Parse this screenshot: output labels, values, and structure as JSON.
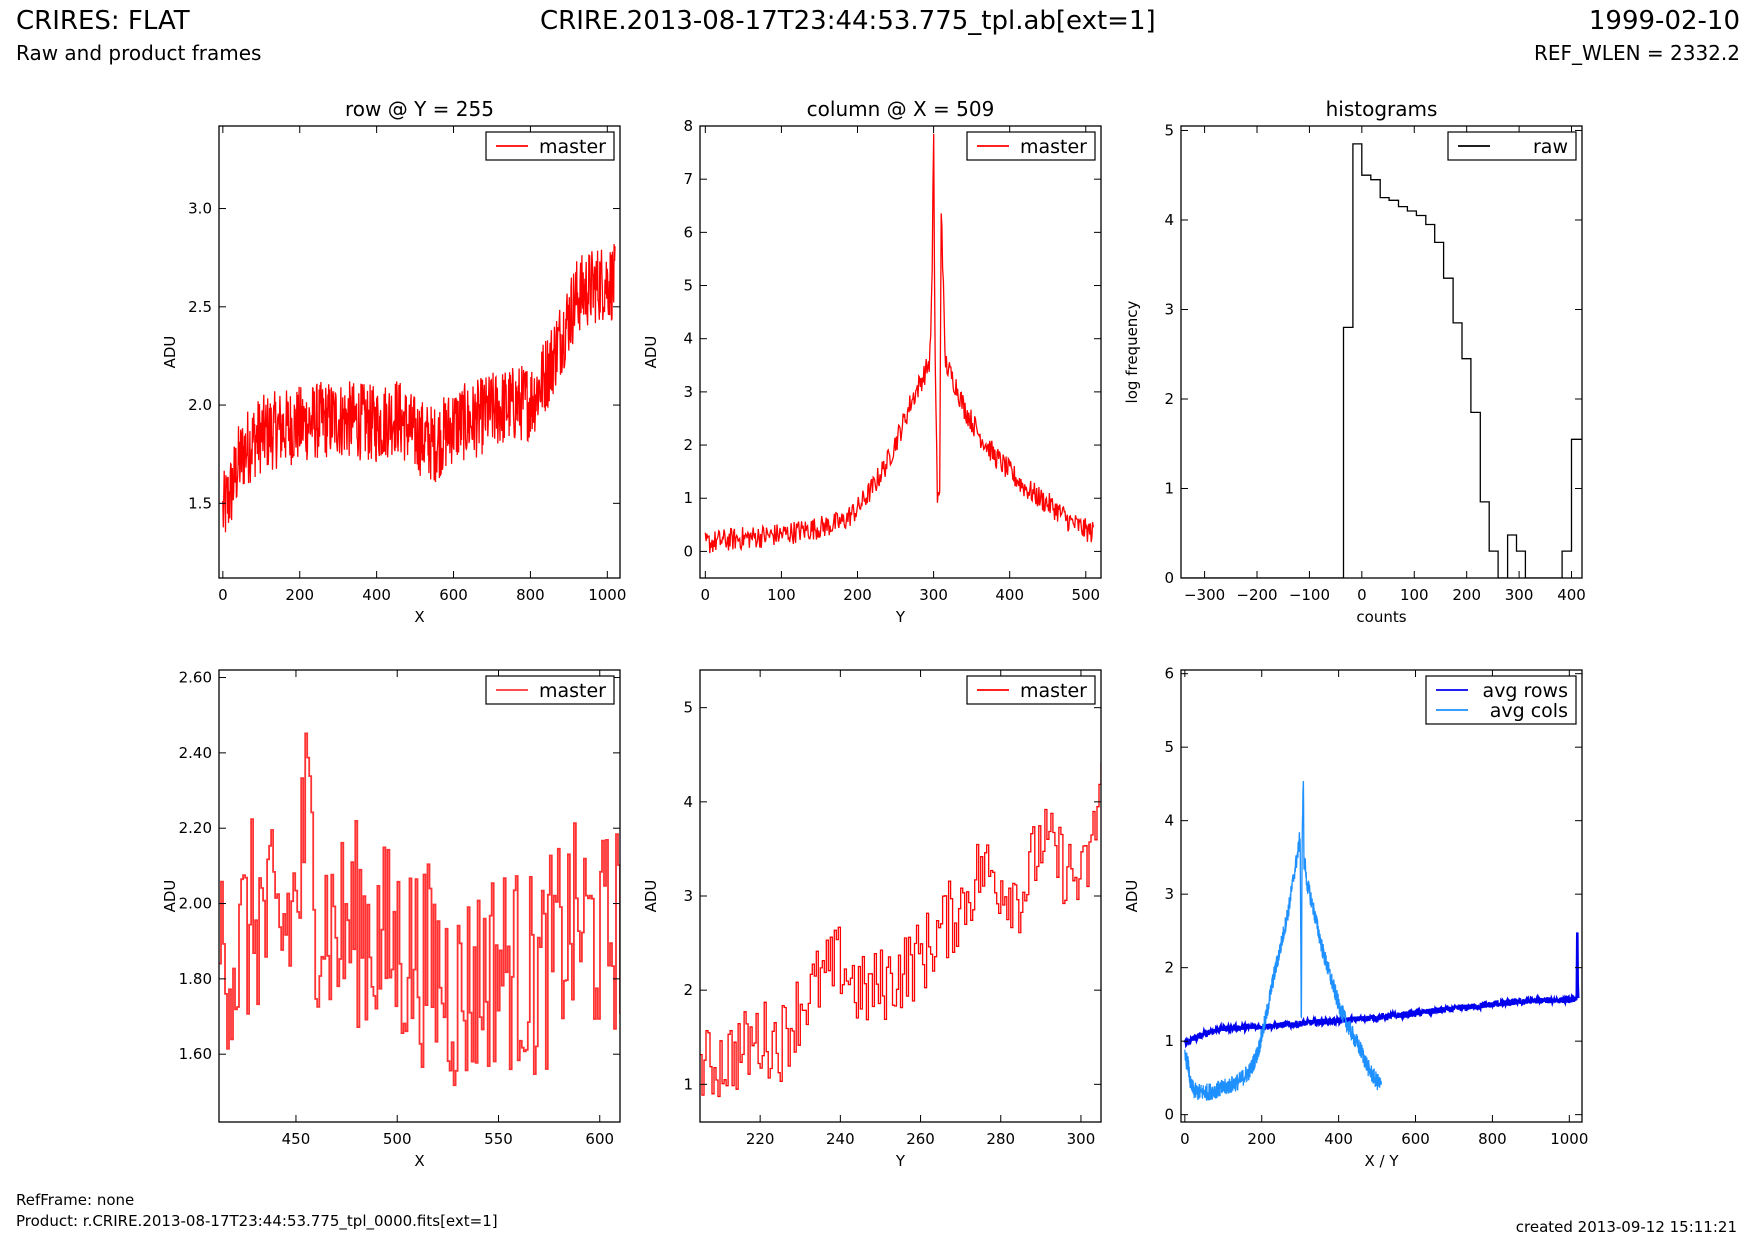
{
  "header": {
    "title": "CRIRES: FLAT",
    "subtitle": "Raw and product frames",
    "filename": "CRIRE.2013-08-17T23:44:53.775_tpl.ab[ext=1]",
    "date": "1999-02-10",
    "ref_wlen": "REF_WLEN = 2332.2"
  },
  "footer": {
    "refframe": "RefFrame: none",
    "product": "Product: r.CRIRE.2013-08-17T23:44:53.775_tpl_0000.fits[ext=1]",
    "created": "created 2013-09-12 15:11:21"
  },
  "colors": {
    "red": "#ff0000",
    "lightred": "#ff3333",
    "black": "#000000",
    "blue": "#0000ee",
    "lightblue": "#1e90ff"
  },
  "chart_data": [
    {
      "type": "line",
      "title": "row @ Y = 255",
      "xlabel": "X",
      "ylabel": "ADU",
      "xlim": [
        -10,
        1033
      ],
      "ylim": [
        1.12,
        3.42
      ],
      "xticks": [
        0,
        200,
        400,
        600,
        800,
        1000
      ],
      "yticks": [
        1.5,
        2.0,
        2.5,
        3.0
      ],
      "legend": "top-right",
      "series": [
        {
          "name": "master",
          "color": "#ff0000",
          "x": [
            0,
            10,
            20,
            40,
            60,
            80,
            100,
            150,
            200,
            250,
            300,
            350,
            400,
            450,
            500,
            550,
            600,
            650,
            700,
            750,
            800,
            820,
            850,
            880,
            900,
            920,
            940,
            960,
            980,
            1000,
            1020
          ],
          "y": [
            1.45,
            1.5,
            1.55,
            1.7,
            1.78,
            1.82,
            1.85,
            1.88,
            1.9,
            1.92,
            1.93,
            1.92,
            1.9,
            1.95,
            1.85,
            1.8,
            1.9,
            1.92,
            1.97,
            2.0,
            2.02,
            2.08,
            2.2,
            2.35,
            2.45,
            2.55,
            2.58,
            2.6,
            2.62,
            2.63,
            2.62
          ],
          "noise": 0.2
        }
      ]
    },
    {
      "type": "line",
      "title": "column @ X = 509",
      "xlabel": "Y",
      "ylabel": "ADU",
      "xlim": [
        -7,
        520
      ],
      "ylim": [
        -0.5,
        8
      ],
      "xticks": [
        0,
        100,
        200,
        300,
        400,
        500
      ],
      "yticks": [
        0,
        1,
        2,
        3,
        4,
        5,
        6,
        7,
        8
      ],
      "legend": "top-right",
      "series": [
        {
          "name": "master",
          "color": "#ff0000",
          "x": [
            0,
            20,
            50,
            100,
            150,
            180,
            200,
            220,
            240,
            260,
            270,
            280,
            290,
            295,
            298,
            300,
            302,
            305,
            308,
            310,
            315,
            320,
            330,
            340,
            360,
            380,
            400,
            420,
            440,
            460,
            480,
            500,
            510
          ],
          "y": [
            0.15,
            0.2,
            0.25,
            0.32,
            0.45,
            0.55,
            0.8,
            1.2,
            1.7,
            2.4,
            2.8,
            3.1,
            3.4,
            3.6,
            5.0,
            7.9,
            3.7,
            1.0,
            1.0,
            6.7,
            3.6,
            3.4,
            3.1,
            2.7,
            2.2,
            1.8,
            1.5,
            1.2,
            1.0,
            0.8,
            0.55,
            0.4,
            0.35
          ],
          "noise": 0.22
        }
      ]
    },
    {
      "type": "line",
      "title": "histograms",
      "xlabel": "counts",
      "ylabel": "log frequency",
      "xlim": [
        -345,
        420
      ],
      "ylim": [
        0,
        5.05
      ],
      "xticks": [
        -300,
        -200,
        -100,
        0,
        100,
        200,
        300,
        400
      ],
      "yticks": [
        0,
        1,
        2,
        3,
        4,
        5
      ],
      "legend": "top-right",
      "series": [
        {
          "name": "raw",
          "color": "#000000",
          "step": true,
          "x": [
            -345,
            -35,
            -35,
            -17,
            -17,
            0,
            0,
            17,
            17,
            35,
            35,
            52,
            52,
            70,
            70,
            87,
            87,
            104,
            104,
            122,
            122,
            139,
            139,
            156,
            156,
            174,
            174,
            191,
            191,
            208,
            208,
            226,
            226,
            243,
            243,
            260,
            260,
            278,
            278,
            295,
            295,
            312,
            312,
            330,
            330,
            382,
            382,
            400,
            400,
            420
          ],
          "y": [
            0,
            0,
            2.8,
            2.8,
            4.85,
            4.85,
            4.5,
            4.5,
            4.45,
            4.45,
            4.25,
            4.25,
            4.22,
            4.22,
            4.15,
            4.15,
            4.1,
            4.1,
            4.05,
            4.05,
            3.95,
            3.95,
            3.75,
            3.75,
            3.35,
            3.35,
            2.85,
            2.85,
            2.45,
            2.45,
            1.85,
            1.85,
            0.85,
            0.85,
            0.3,
            0.3,
            0,
            0,
            0.48,
            0.48,
            0.3,
            0.3,
            0,
            0,
            0,
            0,
            0.3,
            0.3,
            1.55,
            1.55
          ]
        }
      ]
    },
    {
      "type": "line",
      "title": "",
      "xlabel": "X",
      "ylabel": "ADU",
      "xlim": [
        412,
        610
      ],
      "ylim": [
        1.42,
        2.62
      ],
      "xticks": [
        450,
        500,
        550,
        600
      ],
      "yticks": [
        1.6,
        1.8,
        2.0,
        2.2,
        2.4,
        2.6
      ],
      "legend": "top-right",
      "series": [
        {
          "name": "master",
          "color": "#ff3333",
          "step": true,
          "x": [
            412,
            420,
            430,
            440,
            450,
            455,
            460,
            470,
            480,
            490,
            500,
            510,
            520,
            530,
            540,
            550,
            560,
            570,
            580,
            590,
            600,
            610
          ],
          "y": [
            1.92,
            1.85,
            1.98,
            1.9,
            2.0,
            2.25,
            2.0,
            1.92,
            1.95,
            1.9,
            1.88,
            1.85,
            1.82,
            1.75,
            1.8,
            1.85,
            1.82,
            1.8,
            1.9,
            1.95,
            1.9,
            1.95
          ],
          "noise": 0.28
        }
      ]
    },
    {
      "type": "line",
      "title": "",
      "xlabel": "Y",
      "ylabel": "ADU",
      "xlim": [
        205,
        305
      ],
      "ylim": [
        0.6,
        5.4
      ],
      "xticks": [
        220,
        240,
        260,
        280,
        300
      ],
      "yticks": [
        1,
        2,
        3,
        4,
        5
      ],
      "legend": "top-right",
      "series": [
        {
          "name": "master",
          "color": "#ff0000",
          "step": true,
          "x": [
            205,
            210,
            215,
            220,
            225,
            230,
            235,
            240,
            245,
            250,
            255,
            260,
            265,
            270,
            275,
            280,
            285,
            290,
            295,
            300,
            303,
            305
          ],
          "y": [
            1.15,
            1.25,
            1.35,
            1.5,
            1.45,
            1.85,
            2.1,
            2.3,
            1.95,
            2.05,
            2.2,
            2.35,
            2.65,
            2.9,
            3.3,
            3.15,
            3.0,
            3.6,
            3.35,
            3.1,
            3.6,
            4.35
          ],
          "noise": 0.42
        }
      ]
    },
    {
      "type": "line",
      "title": "",
      "xlabel": "X / Y",
      "ylabel": "ADU",
      "xlim": [
        -10,
        1033
      ],
      "ylim": [
        -0.1,
        6.05
      ],
      "xticks": [
        0,
        200,
        400,
        600,
        800,
        1000
      ],
      "yticks": [
        0,
        1,
        2,
        3,
        4,
        5,
        6
      ],
      "legend": "top-right",
      "series": [
        {
          "name": "avg rows",
          "color": "#0000ee",
          "x": [
            0,
            20,
            40,
            60,
            80,
            100,
            200,
            300,
            400,
            500,
            600,
            700,
            800,
            900,
            1000,
            1015,
            1020,
            1021,
            1022,
            1023
          ],
          "y": [
            0.98,
            1.02,
            1.07,
            1.12,
            1.15,
            1.17,
            1.2,
            1.24,
            1.28,
            1.32,
            1.38,
            1.44,
            1.5,
            1.55,
            1.56,
            1.58,
            1.6,
            2.78,
            1.6,
            1.55
          ],
          "noise": 0.04
        },
        {
          "name": "avg cols",
          "color": "#1e90ff",
          "x": [
            0,
            8,
            15,
            25,
            40,
            60,
            100,
            140,
            170,
            190,
            210,
            230,
            250,
            270,
            285,
            295,
            300,
            303,
            305,
            308,
            310,
            313,
            316,
            320,
            330,
            345,
            360,
            380,
            400,
            420,
            440,
            460,
            480,
            500,
            511
          ],
          "y": [
            0.78,
            0.7,
            0.4,
            0.32,
            0.3,
            0.31,
            0.36,
            0.45,
            0.6,
            0.85,
            1.3,
            1.85,
            2.3,
            2.8,
            3.3,
            3.6,
            3.8,
            1.0,
            3.6,
            4.7,
            3.4,
            3.4,
            3.2,
            3.1,
            2.9,
            2.55,
            2.2,
            1.85,
            1.5,
            1.25,
            1.05,
            0.85,
            0.6,
            0.45,
            0.4
          ],
          "noise": 0.12
        }
      ]
    }
  ]
}
